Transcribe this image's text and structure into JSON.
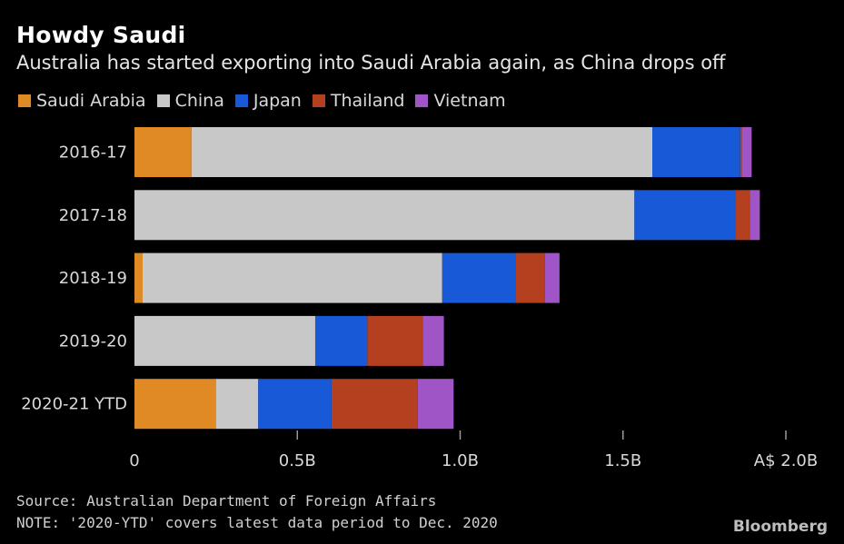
{
  "header": {
    "title": "Howdy Saudi",
    "subtitle": "Australia has started exporting into Saudi Arabia again, as China drops off"
  },
  "footer": {
    "source": "Source: Australian Department of Foreign Affairs",
    "note": "NOTE: '2020-YTD' covers latest data period to Dec. 2020",
    "brand": "Bloomberg"
  },
  "chart_data": {
    "type": "bar",
    "orientation": "horizontal",
    "stacked": true,
    "categories": [
      "2016-17",
      "2017-18",
      "2018-19",
      "2019-20",
      "2020-21 YTD"
    ],
    "series": [
      {
        "name": "Saudi Arabia",
        "color": "#e08a26",
        "values": [
          0.175,
          0.0,
          0.025,
          0.0,
          0.25
        ]
      },
      {
        "name": "China",
        "color": "#c8c8c8",
        "values": [
          1.415,
          1.535,
          0.92,
          0.555,
          0.13
        ]
      },
      {
        "name": "Japan",
        "color": "#1759d6",
        "values": [
          0.27,
          0.31,
          0.225,
          0.16,
          0.225
        ]
      },
      {
        "name": "Thailand",
        "color": "#b5401f",
        "values": [
          0.005,
          0.045,
          0.09,
          0.17,
          0.265
        ]
      },
      {
        "name": "Vietnam",
        "color": "#a055c6",
        "values": [
          0.03,
          0.03,
          0.045,
          0.065,
          0.11
        ]
      }
    ],
    "xlim": [
      0,
      2.0
    ],
    "xticks": [
      0,
      0.5,
      1.0,
      1.5,
      2.0
    ],
    "xtick_labels": [
      "0",
      "0.5B",
      "1.0B",
      "1.5B",
      "A$ 2.0B"
    ],
    "grid": false,
    "legend_position": "top-left"
  }
}
